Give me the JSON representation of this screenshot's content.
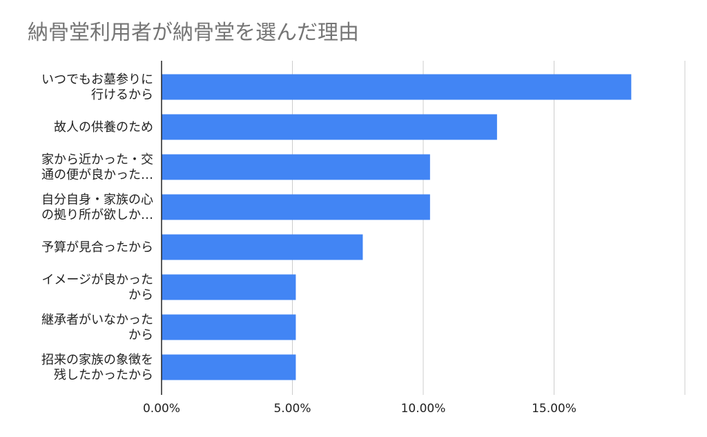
{
  "chart_data": {
    "type": "bar",
    "orientation": "horizontal",
    "title": "納骨堂利用者が納骨堂を選んだ理由",
    "categories": [
      [
        "いつでもお墓参りに",
        "行けるから"
      ],
      [
        "故人の供養のため"
      ],
      [
        "家から近かった・交",
        "通の便が良かった…"
      ],
      [
        "自分自身・家族の心",
        "の拠り所が欲しか…"
      ],
      [
        "予算が見合ったから"
      ],
      [
        "イメージが良かった",
        "から"
      ],
      [
        "継承者がいなかった",
        "から"
      ],
      [
        "招来の家族の象徴を",
        "残したかったから"
      ]
    ],
    "values": [
      17.95,
      12.82,
      10.26,
      10.26,
      7.69,
      5.13,
      5.13,
      5.13
    ],
    "x_ticks": [
      "0.00%",
      "5.00%",
      "10.00%",
      "15.00%"
    ],
    "xlim": [
      0,
      20
    ],
    "grid": true,
    "bar_color": "#4285f4",
    "gridline_color": "#cccccc",
    "axis_color": "#222222"
  }
}
